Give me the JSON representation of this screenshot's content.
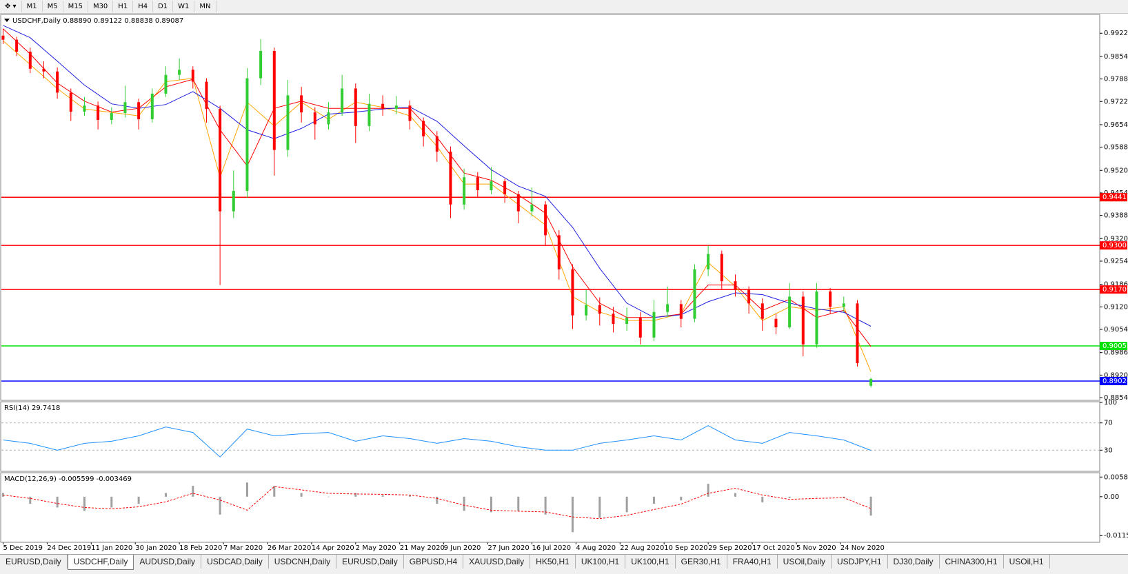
{
  "toolbar": {
    "timeframes": [
      "M1",
      "M5",
      "M15",
      "M30",
      "H1",
      "H4",
      "D1",
      "W1",
      "MN"
    ]
  },
  "chart_data": [
    {
      "type": "candlestick",
      "title": "USDCHF,Daily 0.88890 0.89122 0.88838 0.89087",
      "xlim": [
        -0.5,
        323.5
      ],
      "xticks": [
        {
          "value": 0,
          "label": "5 Dec 2019"
        },
        {
          "value": 13,
          "label": "24 Dec 2019"
        },
        {
          "value": 26,
          "label": "11 Jan 2020"
        },
        {
          "value": 39,
          "label": "30 Jan 2020"
        },
        {
          "value": 52,
          "label": "18 Feb 2020"
        },
        {
          "value": 65,
          "label": "7 Mar 2020"
        },
        {
          "value": 78,
          "label": "26 Mar 2020"
        },
        {
          "value": 91,
          "label": "14 Apr 2020"
        },
        {
          "value": 104,
          "label": "2 May 2020"
        },
        {
          "value": 117,
          "label": "21 May 2020"
        },
        {
          "value": 130,
          "label": "9 Jun 2020"
        },
        {
          "value": 143,
          "label": "27 Jun 2020"
        },
        {
          "value": 156,
          "label": "16 Jul 2020"
        },
        {
          "value": 169,
          "label": "4 Aug 2020"
        },
        {
          "value": 182,
          "label": "22 Aug 2020"
        },
        {
          "value": 195,
          "label": "10 Sep 2020"
        },
        {
          "value": 208,
          "label": "29 Sep 2020"
        },
        {
          "value": 221,
          "label": "17 Oct 2020"
        },
        {
          "value": 234,
          "label": "5 Nov 2020"
        },
        {
          "value": 247,
          "label": "24 Nov 2020"
        }
      ],
      "ylim": [
        0.8848,
        0.9975
      ],
      "yticks": [
        {
          "value": 0.9922,
          "label": "0.99220"
        },
        {
          "value": 0.9854,
          "label": "0.98540"
        },
        {
          "value": 0.9788,
          "label": "0.97880"
        },
        {
          "value": 0.9722,
          "label": "0.97220"
        },
        {
          "value": 0.9654,
          "label": "0.96540"
        },
        {
          "value": 0.9588,
          "label": "0.95880"
        },
        {
          "value": 0.952,
          "label": "0.95200"
        },
        {
          "value": 0.9454,
          "label": "0.94540"
        },
        {
          "value": 0.9388,
          "label": "0.93880"
        },
        {
          "value": 0.932,
          "label": "0.93200"
        },
        {
          "value": 0.9254,
          "label": "0.92540"
        },
        {
          "value": 0.9186,
          "label": "0.91860"
        },
        {
          "value": 0.912,
          "label": "0.91200"
        },
        {
          "value": 0.9054,
          "label": "0.90540"
        },
        {
          "value": 0.8986,
          "label": "0.89860"
        },
        {
          "value": 0.892,
          "label": "0.89200"
        },
        {
          "value": 0.8854,
          "label": "0.88540"
        }
      ],
      "bull_color": "#32cd32",
      "bear_color": "#ff0000",
      "x": [
        0,
        4,
        8,
        12,
        16,
        20,
        24,
        28,
        32,
        36,
        40,
        44,
        48,
        52,
        56,
        60,
        64,
        68,
        72,
        76,
        80,
        84,
        88,
        92,
        96,
        100,
        104,
        108,
        112,
        116,
        120,
        124,
        128,
        132,
        136,
        140,
        144,
        148,
        152,
        156,
        160,
        164,
        168,
        172,
        176,
        180,
        184,
        188,
        192,
        196,
        200,
        204,
        208,
        212,
        216,
        220,
        224,
        228,
        232,
        236,
        240,
        244,
        248,
        252,
        256
      ],
      "open": [
        0.9915,
        0.9903,
        0.9868,
        0.9818,
        0.981,
        0.9748,
        0.9692,
        0.971,
        0.9668,
        0.9688,
        0.972,
        0.967,
        0.9745,
        0.98,
        0.9815,
        0.978,
        0.97,
        0.94,
        0.946,
        0.979,
        0.987,
        0.958,
        0.974,
        0.969,
        0.9655,
        0.969,
        0.976,
        0.965,
        0.9715,
        0.97,
        0.971,
        0.9665,
        0.962,
        0.9575,
        0.942,
        0.95,
        0.9462,
        0.9488,
        0.945,
        0.94,
        0.942,
        0.933,
        0.923,
        0.9095,
        0.9125,
        0.91,
        0.907,
        0.9088,
        0.903,
        0.9105,
        0.9128,
        0.9085,
        0.923,
        0.9275,
        0.9195,
        0.917,
        0.913,
        0.9085,
        0.906,
        0.915,
        0.901,
        0.9165,
        0.912,
        0.913,
        0.8889
      ],
      "high": [
        0.9935,
        0.9912,
        0.988,
        0.984,
        0.9822,
        0.976,
        0.9735,
        0.9722,
        0.9705,
        0.9768,
        0.973,
        0.976,
        0.9825,
        0.9848,
        0.9825,
        0.979,
        0.971,
        0.952,
        0.982,
        0.9905,
        0.988,
        0.9785,
        0.9765,
        0.9705,
        0.972,
        0.98,
        0.9775,
        0.9745,
        0.974,
        0.9738,
        0.9725,
        0.9675,
        0.9635,
        0.959,
        0.9525,
        0.9515,
        0.953,
        0.9495,
        0.946,
        0.947,
        0.943,
        0.9345,
        0.9245,
        0.917,
        0.9148,
        0.912,
        0.9118,
        0.9105,
        0.914,
        0.918,
        0.914,
        0.9245,
        0.93,
        0.9285,
        0.9215,
        0.918,
        0.9145,
        0.91,
        0.919,
        0.9165,
        0.919,
        0.9175,
        0.915,
        0.914,
        0.89122
      ],
      "low": [
        0.989,
        0.9855,
        0.9805,
        0.979,
        0.973,
        0.9665,
        0.968,
        0.964,
        0.9655,
        0.9675,
        0.964,
        0.966,
        0.9735,
        0.9785,
        0.976,
        0.966,
        0.9184,
        0.938,
        0.944,
        0.977,
        0.9505,
        0.956,
        0.966,
        0.961,
        0.964,
        0.968,
        0.96,
        0.9635,
        0.968,
        0.9685,
        0.964,
        0.959,
        0.9545,
        0.938,
        0.9405,
        0.944,
        0.945,
        0.9425,
        0.9365,
        0.9385,
        0.93,
        0.92,
        0.9055,
        0.908,
        0.9065,
        0.9045,
        0.905,
        0.901,
        0.902,
        0.909,
        0.906,
        0.9075,
        0.921,
        0.917,
        0.915,
        0.91,
        0.905,
        0.904,
        0.9055,
        0.8975,
        0.9,
        0.91,
        0.9105,
        0.8945,
        0.88838
      ],
      "close": [
        0.9903,
        0.9868,
        0.9818,
        0.981,
        0.9748,
        0.9692,
        0.971,
        0.9668,
        0.9688,
        0.972,
        0.967,
        0.9745,
        0.98,
        0.9815,
        0.978,
        0.97,
        0.94,
        0.946,
        0.979,
        0.987,
        0.958,
        0.974,
        0.969,
        0.9655,
        0.969,
        0.976,
        0.965,
        0.9715,
        0.97,
        0.971,
        0.9665,
        0.962,
        0.9575,
        0.942,
        0.95,
        0.9462,
        0.9488,
        0.945,
        0.94,
        0.942,
        0.933,
        0.923,
        0.9095,
        0.9125,
        0.91,
        0.907,
        0.9088,
        0.903,
        0.9105,
        0.9128,
        0.9085,
        0.923,
        0.9275,
        0.9195,
        0.917,
        0.913,
        0.9085,
        0.906,
        0.915,
        0.901,
        0.9165,
        0.912,
        0.913,
        0.8955,
        0.89087
      ],
      "ma_x": [
        0,
        8,
        16,
        24,
        32,
        40,
        48,
        56,
        64,
        72,
        80,
        88,
        96,
        104,
        112,
        120,
        128,
        136,
        144,
        152,
        160,
        168,
        176,
        184,
        192,
        200,
        208,
        216,
        224,
        232,
        240,
        248,
        256
      ],
      "moving_averages": [
        {
          "color": "#ffa500",
          "values": [
            0.99,
            0.983,
            0.976,
            0.97,
            0.969,
            0.968,
            0.978,
            0.979,
            0.95,
            0.972,
            0.965,
            0.972,
            0.967,
            0.972,
            0.9705,
            0.968,
            0.959,
            0.948,
            0.948,
            0.942,
            0.936,
            0.915,
            0.9105,
            0.908,
            0.908,
            0.91,
            0.925,
            0.918,
            0.908,
            0.912,
            0.911,
            0.912,
            0.893
          ]
        },
        {
          "color": "#ff0000",
          "values": [
            0.9935,
            0.9861,
            0.9776,
            0.9723,
            0.9691,
            0.9702,
            0.9765,
            0.9787,
            0.9639,
            0.9533,
            0.9702,
            0.9723,
            0.9702,
            0.9702,
            0.9702,
            0.9702,
            0.9617,
            0.9512,
            0.9491,
            0.9448,
            0.9395,
            0.9237,
            0.9131,
            0.9089,
            0.9089,
            0.9099,
            0.9184,
            0.9184,
            0.911,
            0.9142,
            0.9089,
            0.911,
            0.9004
          ]
        },
        {
          "color": "#2020e0",
          "values": [
            0.9945,
            0.9909,
            0.984,
            0.977,
            0.9715,
            0.9702,
            0.9713,
            0.9751,
            0.9702,
            0.9639,
            0.9613,
            0.9643,
            0.9685,
            0.9691,
            0.97,
            0.9706,
            0.9664,
            0.9592,
            0.9522,
            0.9474,
            0.9444,
            0.9353,
            0.9233,
            0.9131,
            0.9089,
            0.9097,
            0.9135,
            0.9161,
            0.9156,
            0.9131,
            0.9114,
            0.9104,
            0.9063
          ]
        }
      ],
      "levels": [
        {
          "value": 0.94413,
          "color": "#ff0000"
        },
        {
          "value": 0.93001,
          "color": "#ff0000"
        },
        {
          "value": 0.91709,
          "color": "#ff0000"
        },
        {
          "value": 0.90055,
          "color": "#00e000"
        },
        {
          "value": 0.89026,
          "color": "#0000ff"
        }
      ]
    },
    {
      "type": "line",
      "title": "RSI(14) 29.7418",
      "xlim": [
        -0.5,
        323.5
      ],
      "ylim": [
        0,
        100
      ],
      "yticks": [
        100,
        70,
        30
      ],
      "levels": [
        70,
        30
      ],
      "color": "#1e90ff",
      "x": [
        0,
        8,
        16,
        24,
        32,
        40,
        48,
        56,
        64,
        72,
        80,
        88,
        96,
        104,
        112,
        120,
        128,
        136,
        144,
        152,
        160,
        168,
        176,
        184,
        192,
        200,
        208,
        216,
        224,
        232,
        240,
        248,
        256
      ],
      "values": [
        45,
        40,
        30,
        40,
        43,
        51,
        64,
        56,
        20,
        61,
        51,
        54,
        56,
        43,
        51,
        47,
        40,
        47,
        43,
        35,
        30,
        30,
        40,
        45,
        51,
        45,
        66,
        45,
        40,
        56,
        51,
        45,
        29.7
      ]
    },
    {
      "type": "bar",
      "title": "MACD(12,26,9) -0.005599 -0.003469",
      "xlim": [
        -0.5,
        323.5
      ],
      "ylim": [
        -0.0133,
        0.0069
      ],
      "yticks": [
        0.005818,
        {
          "value": 0,
          "label": "0.00"
        },
        -0.011514
      ],
      "color": "#a0a0a0",
      "signal_color": "#ff0000",
      "x": [
        0,
        8,
        16,
        24,
        32,
        40,
        48,
        56,
        64,
        72,
        80,
        88,
        96,
        104,
        112,
        120,
        128,
        136,
        144,
        152,
        160,
        168,
        176,
        184,
        192,
        200,
        208,
        216,
        224,
        232,
        240,
        248,
        256
      ],
      "values": [
        0.0011,
        -0.0021,
        -0.0032,
        -0.0042,
        -0.0032,
        -0.0021,
        0.0011,
        0.0032,
        -0.0053,
        0.0042,
        0.0032,
        0.0011,
        0,
        0.0011,
        0.0004,
        0.0004,
        -0.0021,
        -0.0042,
        -0.0046,
        -0.0042,
        -0.0053,
        -0.0105,
        -0.0063,
        -0.0046,
        -0.0021,
        -0.0011,
        0.0038,
        0.0011,
        -0.0017,
        -0.0004,
        0,
        -0.0004,
        -0.0056
      ],
      "signal": [
        0.0005,
        -0.0005,
        -0.002,
        -0.0032,
        -0.0036,
        -0.003,
        -0.0015,
        0.001,
        -0.001,
        -0.004,
        0.003,
        0.002,
        0.001,
        0.0008,
        0.0007,
        0.0005,
        -0.0005,
        -0.0025,
        -0.004,
        -0.0043,
        -0.0045,
        -0.006,
        -0.0065,
        -0.0055,
        -0.0038,
        -0.0022,
        0.001,
        0.0025,
        0.0005,
        -0.0008,
        -0.0005,
        -0.0003,
        -0.0035
      ]
    }
  ],
  "tabs": [
    "EURUSD,Daily",
    "USDCHF,Daily",
    "AUDUSD,Daily",
    "USDCAD,Daily",
    "USDCNH,Daily",
    "EURUSD,Daily",
    "GBPUSD,H4",
    "XAUUSD,Daily",
    "HK50,H1",
    "UK100,H1",
    "UK100,H1",
    "GER30,H1",
    "FRA40,H1",
    "USOil,Daily",
    "USDJPY,H1",
    "DJ30,Daily",
    "CHINA300,H1",
    "USOil,H1"
  ],
  "active_tab": 1
}
